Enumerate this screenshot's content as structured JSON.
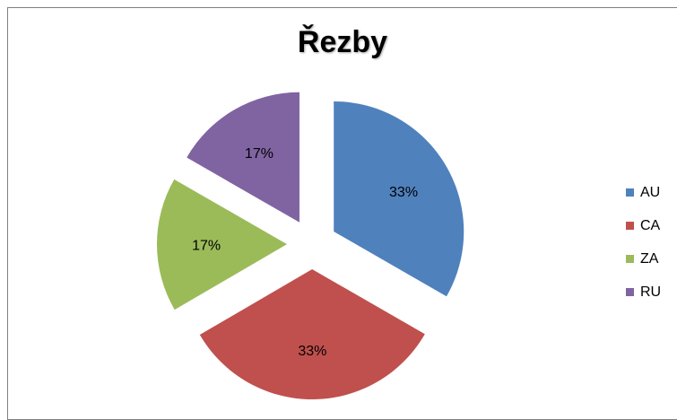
{
  "chart_data": {
    "type": "pie",
    "title": "Řezby",
    "categories": [
      "AU",
      "CA",
      "ZA",
      "RU"
    ],
    "values": [
      33.3,
      33.3,
      16.7,
      16.7
    ],
    "labels": [
      "33%",
      "33%",
      "17%",
      "17%"
    ],
    "colors": [
      "#4f81bd",
      "#c0504d",
      "#9bbb59",
      "#8064a2"
    ],
    "exploded": true,
    "legend": "right"
  }
}
